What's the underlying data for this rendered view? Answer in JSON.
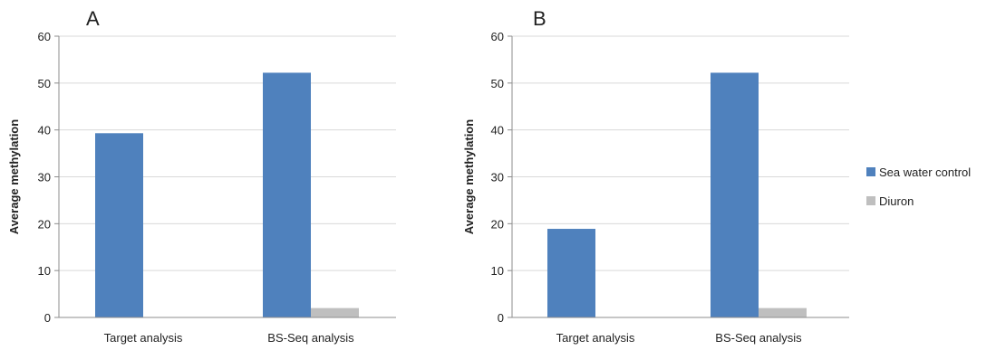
{
  "chart_data": [
    {
      "type": "bar",
      "panel_label": "A",
      "categories": [
        "Target analysis",
        "BS-Seq analysis"
      ],
      "series": [
        {
          "name": "Sea water control",
          "color": "#4F81BD",
          "values": [
            39.3,
            52.2
          ]
        },
        {
          "name": "Diuron",
          "color": "#BFBFBF",
          "values": [
            0,
            2.0
          ]
        }
      ],
      "ylabel": "Average methylation",
      "ylim": [
        0,
        60
      ],
      "yticks": [
        0,
        10,
        20,
        30,
        40,
        50,
        60
      ],
      "grid": true
    },
    {
      "type": "bar",
      "panel_label": "B",
      "categories": [
        "Target analysis",
        "BS-Seq analysis"
      ],
      "series": [
        {
          "name": "Sea water control",
          "color": "#4F81BD",
          "values": [
            18.9,
            52.2
          ]
        },
        {
          "name": "Diuron",
          "color": "#BFBFBF",
          "values": [
            0,
            2.0
          ]
        }
      ],
      "ylabel": "Average methylation",
      "ylim": [
        0,
        60
      ],
      "yticks": [
        0,
        10,
        20,
        30,
        40,
        50,
        60
      ],
      "grid": true
    }
  ],
  "legend": {
    "placement": "right",
    "items": [
      {
        "label": "Sea water control",
        "color": "#4F81BD"
      },
      {
        "label": "Diuron",
        "color": "#BFBFBF"
      }
    ]
  }
}
